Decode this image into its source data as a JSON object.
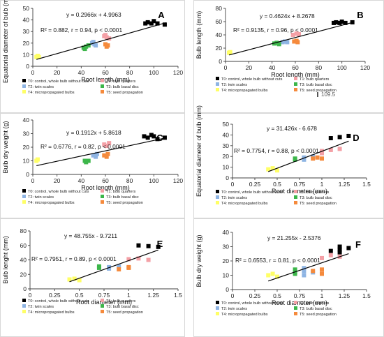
{
  "legend_labels": {
    "T0": "T0: control, whole bulb without cuts",
    "T1": "T1: bulb quarters",
    "T2": "T2: twin scales",
    "T3": "T3: bulb basal disc",
    "T4": "T4: micropropagated bulbs",
    "T5": "T5: seed propagation"
  },
  "colors": {
    "T0": "#000000",
    "T1": "#f4a0a6",
    "T2": "#8eb4e3",
    "T3": "#3cb64a",
    "T4": "#ffff66",
    "T5": "#f58a3c"
  },
  "chart_data": [
    {
      "id": "A",
      "type": "scatter",
      "letter": "A",
      "xlabel": "Root length (mm)",
      "ylabel": "Equatorial diameter of bulb (mm)",
      "xlim": [
        0,
        120
      ],
      "ylim": [
        0,
        50
      ],
      "xticks": [
        0,
        20,
        40,
        60,
        80,
        100,
        120
      ],
      "yticks": [
        0,
        10,
        20,
        30,
        40,
        50
      ],
      "xtick_labels": [
        "0",
        "20",
        "40",
        "60",
        "80",
        "100",
        "120"
      ],
      "ytick_labels": [
        "0",
        "10",
        "20",
        "30",
        "40",
        "50"
      ],
      "equation": "y = 0.2966x + 4.9963",
      "stats": "R² = 0.882, r = 0.94, p < 0.0001",
      "trend": {
        "slope": 0.2966,
        "intercept": 4.9963,
        "x0": 3,
        "x1": 110
      },
      "extra_label": "",
      "series": [
        {
          "group": "T0",
          "points": [
            [
              93,
              37
            ],
            [
              95,
              38
            ],
            [
              98,
              37
            ],
            [
              100,
              39
            ],
            [
              103,
              37
            ],
            [
              109,
              36
            ]
          ]
        },
        {
          "group": "T1",
          "points": [
            [
              59,
              26
            ],
            [
              61,
              25
            ],
            [
              63,
              24
            ],
            [
              60,
              27
            ]
          ]
        },
        {
          "group": "T2",
          "points": [
            [
              49,
              20
            ],
            [
              51,
              19
            ],
            [
              52,
              18
            ],
            [
              50,
              21
            ]
          ]
        },
        {
          "group": "T3",
          "points": [
            [
              42,
              16
            ],
            [
              44,
              17
            ],
            [
              46,
              18
            ],
            [
              43,
              15
            ]
          ]
        },
        {
          "group": "T4",
          "points": [
            [
              3,
              8
            ],
            [
              4,
              9
            ],
            [
              5,
              8
            ]
          ]
        },
        {
          "group": "T5",
          "points": [
            [
              60,
              19
            ],
            [
              62,
              18
            ],
            [
              61,
              17
            ]
          ]
        }
      ]
    },
    {
      "id": "B",
      "type": "scatter",
      "letter": "B",
      "xlabel": "Root length (mm)",
      "ylabel": "Bulb length (mm)",
      "xlim": [
        0,
        120
      ],
      "ylim": [
        0,
        80
      ],
      "xticks": [
        0,
        20,
        40,
        60,
        80,
        100,
        120
      ],
      "yticks": [
        0,
        20,
        40,
        60,
        80
      ],
      "xtick_labels": [
        "0",
        "20",
        "40",
        "60",
        "80",
        "100",
        "120"
      ],
      "ytick_labels": [
        "0",
        "20",
        "40",
        "60",
        "80"
      ],
      "equation": "y = 0.4624x + 8.2678",
      "stats": "R² = 0.9135, r =  0.96, p < 0.0001",
      "trend": {
        "slope": 0.4624,
        "intercept": 8.2678,
        "x0": 3,
        "x1": 110
      },
      "extra_label": "109.5",
      "series": [
        {
          "group": "T0",
          "points": [
            [
              93,
              58
            ],
            [
              95,
              59
            ],
            [
              98,
              58
            ],
            [
              100,
              60
            ],
            [
              103,
              58
            ],
            [
              109,
              59
            ]
          ]
        },
        {
          "group": "T1",
          "points": [
            [
              58,
              40
            ],
            [
              61,
              42
            ],
            [
              63,
              41
            ]
          ]
        },
        {
          "group": "T2",
          "points": [
            [
              49,
              29
            ],
            [
              51,
              30
            ],
            [
              53,
              29
            ]
          ]
        },
        {
          "group": "T3",
          "points": [
            [
              42,
              27
            ],
            [
              44,
              28
            ],
            [
              46,
              26
            ]
          ]
        },
        {
          "group": "T4",
          "points": [
            [
              3,
              13
            ],
            [
              4,
              14
            ]
          ]
        },
        {
          "group": "T5",
          "points": [
            [
              59,
              30
            ],
            [
              61,
              31
            ],
            [
              62,
              29
            ]
          ]
        }
      ]
    },
    {
      "id": "C",
      "type": "scatter",
      "letter": "C",
      "xlabel": "Root length (mm)",
      "ylabel": "Bulb dry weight (g)",
      "xlim": [
        0,
        120
      ],
      "ylim": [
        0,
        40
      ],
      "xticks": [
        0,
        20,
        40,
        60,
        80,
        100,
        120
      ],
      "yticks": [
        0,
        10,
        20,
        30,
        40
      ],
      "xtick_labels": [
        "0",
        "20",
        "40",
        "60",
        "80",
        "100",
        "120"
      ],
      "ytick_labels": [
        "0",
        "10",
        "20",
        "30",
        "40"
      ],
      "equation": "y = 0.1912x + 5.8618",
      "stats": "R² = 0.6776, r = 0.82, p < 0.0001",
      "trend": {
        "slope": 0.1912,
        "intercept": 5.8618,
        "x0": 3,
        "x1": 110
      },
      "extra_label": "",
      "series": [
        {
          "group": "T0",
          "points": [
            [
              92,
              28
            ],
            [
              95,
              27
            ],
            [
              98,
              29
            ],
            [
              100,
              28
            ],
            [
              103,
              26
            ],
            [
              109,
              27
            ]
          ]
        },
        {
          "group": "T1",
          "points": [
            [
              59,
              22
            ],
            [
              61,
              21
            ],
            [
              63,
              23
            ]
          ]
        },
        {
          "group": "T2",
          "points": [
            [
              50,
              14
            ],
            [
              52,
              13
            ],
            [
              53,
              15
            ]
          ]
        },
        {
          "group": "T3",
          "points": [
            [
              43,
              10
            ],
            [
              44,
              9
            ],
            [
              46,
              10
            ]
          ]
        },
        {
          "group": "T4",
          "points": [
            [
              3,
              10
            ],
            [
              4,
              11
            ]
          ]
        },
        {
          "group": "T5",
          "points": [
            [
              59,
              14
            ],
            [
              61,
              13
            ],
            [
              62,
              15
            ]
          ]
        }
      ]
    },
    {
      "id": "D",
      "type": "scatter",
      "letter": "D",
      "xlabel": "Root diameter (mm)",
      "ylabel": "Equatorial diameter of bulb (mm)",
      "xlim": [
        0,
        1.5
      ],
      "ylim": [
        0,
        50
      ],
      "xticks": [
        0,
        0.25,
        0.5,
        0.75,
        1,
        1.25,
        1.5
      ],
      "yticks": [
        0,
        10,
        20,
        30,
        40,
        50
      ],
      "xtick_labels": [
        "0",
        "0.25",
        "0.5",
        "0.75",
        "1",
        "1.25",
        "1.5"
      ],
      "ytick_labels": [
        "0",
        "10",
        "20",
        "30",
        "40",
        "50"
      ],
      "equation": "y = 31.426x - 6.678",
      "stats": "R² = 0.7754, r = 0.88, p < 0.0001",
      "trend": {
        "slope": 31.426,
        "intercept": -6.678,
        "x0": 0.4,
        "x1": 1.3
      },
      "extra_label": "",
      "series": [
        {
          "group": "T0",
          "points": [
            [
              1.1,
              37
            ],
            [
              1.2,
              38
            ],
            [
              1.3,
              39
            ]
          ]
        },
        {
          "group": "T1",
          "points": [
            [
              1.0,
              25
            ],
            [
              1.1,
              26
            ],
            [
              1.2,
              27
            ],
            [
              1.0,
              23
            ]
          ]
        },
        {
          "group": "T2",
          "points": [
            [
              0.8,
              19
            ],
            [
              0.8,
              17
            ],
            [
              0.9,
              20
            ]
          ]
        },
        {
          "group": "T3",
          "points": [
            [
              0.7,
              17
            ],
            [
              0.7,
              18
            ]
          ]
        },
        {
          "group": "T4",
          "points": [
            [
              0.4,
              8
            ],
            [
              0.5,
              7
            ],
            [
              0.45,
              9
            ]
          ]
        },
        {
          "group": "T5",
          "points": [
            [
              0.9,
              18
            ],
            [
              1.0,
              18
            ],
            [
              0.95,
              19
            ]
          ]
        }
      ]
    },
    {
      "id": "E",
      "type": "scatter",
      "letter": "E",
      "xlabel": "Root diameter (mm)",
      "ylabel": "Bulb lenght (mm)",
      "xlim": [
        0,
        1.5
      ],
      "ylim": [
        0,
        80
      ],
      "xticks": [
        0,
        0.25,
        0.5,
        0.75,
        1,
        1.25,
        1.5
      ],
      "yticks": [
        0,
        20,
        40,
        60,
        80
      ],
      "xtick_labels": [
        "0",
        "0.25",
        "0.5",
        "0.75",
        "1",
        "1.25",
        "1.5"
      ],
      "ytick_labels": [
        "0",
        "20",
        "40",
        "60",
        "80"
      ],
      "equation": "y = 48.755x - 9.7211",
      "stats": "R² = 0.7951, r = 0.89, p < 0.0001",
      "trend": {
        "slope": 48.755,
        "intercept": -9.7211,
        "x0": 0.4,
        "x1": 1.3
      },
      "extra_label": "",
      "series": [
        {
          "group": "T0",
          "points": [
            [
              1.1,
              60
            ],
            [
              1.2,
              59
            ],
            [
              1.3,
              58
            ]
          ]
        },
        {
          "group": "T1",
          "points": [
            [
              1.1,
              42
            ],
            [
              1.2,
              40
            ],
            [
              1.0,
              41
            ]
          ]
        },
        {
          "group": "T2",
          "points": [
            [
              0.8,
              30
            ],
            [
              0.8,
              28
            ],
            [
              0.9,
              31
            ]
          ]
        },
        {
          "group": "T3",
          "points": [
            [
              0.7,
              31
            ],
            [
              0.7,
              29
            ]
          ]
        },
        {
          "group": "T4",
          "points": [
            [
              0.4,
              13
            ],
            [
              0.5,
              12
            ],
            [
              0.45,
              14
            ]
          ]
        },
        {
          "group": "T5",
          "points": [
            [
              0.9,
              27
            ],
            [
              1.0,
              29
            ],
            [
              1.0,
              30
            ]
          ]
        }
      ]
    },
    {
      "id": "F",
      "type": "scatter",
      "letter": "F",
      "xlabel": "Root diameter (mm)",
      "ylabel": "Bulb dry weight (g)",
      "xlim": [
        0,
        1.5
      ],
      "ylim": [
        0,
        40
      ],
      "xticks": [
        0,
        0.25,
        0.5,
        0.75,
        1,
        1.25,
        1.5
      ],
      "yticks": [
        0,
        10,
        20,
        30,
        40
      ],
      "xtick_labels": [
        "0",
        "0.25",
        "0.5",
        "0.75",
        "1",
        "1.25",
        "1.5"
      ],
      "ytick_labels": [
        "0",
        "10",
        "20",
        "30",
        "40"
      ],
      "equation": "y = 21.255x - 2.5376",
      "stats": "R² = 0.6553, r = 0.81, p < 0.0001",
      "trend": {
        "slope": 21.255,
        "intercept": -2.5376,
        "x0": 0.4,
        "x1": 1.3
      },
      "extra_label": "",
      "series": [
        {
          "group": "T0",
          "points": [
            [
              1.1,
              27
            ],
            [
              1.2,
              28
            ],
            [
              1.2,
              30
            ],
            [
              1.3,
              29
            ],
            [
              1.2,
              26
            ]
          ]
        },
        {
          "group": "T1",
          "points": [
            [
              1.0,
              22
            ],
            [
              1.1,
              24
            ],
            [
              1.2,
              23
            ]
          ]
        },
        {
          "group": "T2",
          "points": [
            [
              0.8,
              10
            ],
            [
              0.8,
              13
            ],
            [
              0.8,
              15
            ],
            [
              0.9,
              12
            ]
          ]
        },
        {
          "group": "T3",
          "points": [
            [
              0.7,
              14
            ],
            [
              0.7,
              11
            ],
            [
              0.7,
              12
            ]
          ]
        },
        {
          "group": "T4",
          "points": [
            [
              0.4,
              10
            ],
            [
              0.5,
              9
            ],
            [
              0.45,
              11
            ]
          ]
        },
        {
          "group": "T5",
          "points": [
            [
              0.9,
              13
            ],
            [
              1.0,
              14
            ],
            [
              1.0,
              11
            ]
          ]
        }
      ]
    }
  ]
}
